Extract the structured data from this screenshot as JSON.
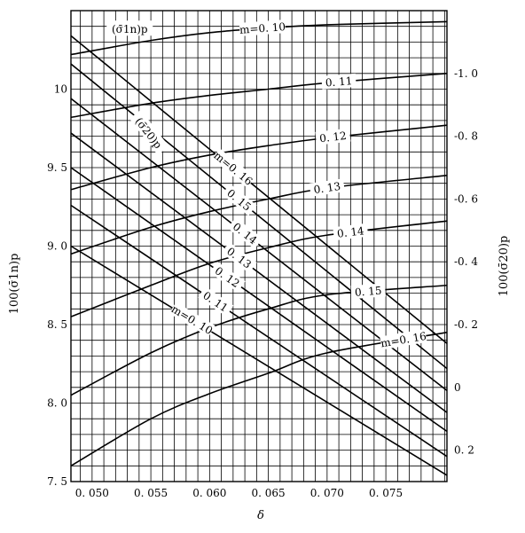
{
  "chart_data": {
    "type": "line",
    "xlabel": "δ",
    "ylabel_left": "100(σ̄1n)p",
    "ylabel_right": "100(σ̄20)p",
    "xlim": [
      0.0482,
      0.0802
    ],
    "ylim_left": [
      7.5,
      10.5
    ],
    "ylim_right": [
      0.3,
      -1.2
    ],
    "x_ticks": [
      0.05,
      0.055,
      0.06,
      0.065,
      0.07,
      0.075
    ],
    "x_tick_labels": [
      "0. 050",
      "0. 055",
      "0. 060",
      "0. 065",
      "0. 070",
      "0. 075"
    ],
    "y_left_ticks": [
      7.5,
      8.0,
      8.5,
      9.0,
      9.5,
      10.0
    ],
    "y_left_tick_labels": [
      "7. 5",
      "8. 0",
      "8. 5",
      "9. 0",
      "9. 5",
      "10"
    ],
    "y_right_ticks": [
      0.2,
      0.0,
      -0.2,
      -0.4,
      -0.6,
      -0.8,
      -1.0
    ],
    "y_right_tick_labels": [
      "0. 2",
      "0",
      "-0. 2",
      "-0. 4",
      "-0. 6",
      "-0. 8",
      "-1. 0"
    ],
    "grid": true,
    "group_labels": {
      "sigma1n": "(σ̄1n)p",
      "sigma20": "(σ̄20)p"
    },
    "series_sigma1n": [
      {
        "name": "m=0. 10",
        "axis": "left",
        "points": [
          [
            0.0482,
            10.22
          ],
          [
            0.055,
            10.31
          ],
          [
            0.06,
            10.36
          ],
          [
            0.065,
            10.39
          ],
          [
            0.07,
            10.41
          ],
          [
            0.0802,
            10.43
          ]
        ]
      },
      {
        "name": "0. 11",
        "axis": "left",
        "points": [
          [
            0.0482,
            9.82
          ],
          [
            0.055,
            9.91
          ],
          [
            0.06,
            9.96
          ],
          [
            0.065,
            10.0
          ],
          [
            0.07,
            10.04
          ],
          [
            0.0802,
            10.1
          ]
        ]
      },
      {
        "name": "0. 12",
        "axis": "left",
        "points": [
          [
            0.0482,
            9.36
          ],
          [
            0.055,
            9.5
          ],
          [
            0.06,
            9.58
          ],
          [
            0.065,
            9.64
          ],
          [
            0.07,
            9.69
          ],
          [
            0.0802,
            9.77
          ]
        ]
      },
      {
        "name": "0. 13",
        "axis": "left",
        "points": [
          [
            0.0482,
            8.95
          ],
          [
            0.055,
            9.12
          ],
          [
            0.06,
            9.22
          ],
          [
            0.065,
            9.3
          ],
          [
            0.07,
            9.37
          ],
          [
            0.0802,
            9.45
          ]
        ]
      },
      {
        "name": "0. 14",
        "axis": "left",
        "points": [
          [
            0.0482,
            8.55
          ],
          [
            0.055,
            8.75
          ],
          [
            0.06,
            8.89
          ],
          [
            0.065,
            8.99
          ],
          [
            0.07,
            9.07
          ],
          [
            0.0802,
            9.16
          ]
        ]
      },
      {
        "name": "0. 15",
        "axis": "left",
        "points": [
          [
            0.0482,
            8.05
          ],
          [
            0.055,
            8.32
          ],
          [
            0.06,
            8.48
          ],
          [
            0.065,
            8.6
          ],
          [
            0.07,
            8.69
          ],
          [
            0.0802,
            8.75
          ]
        ]
      },
      {
        "name": "m=0. 16",
        "axis": "left",
        "points": [
          [
            0.0482,
            7.6
          ],
          [
            0.055,
            7.9
          ],
          [
            0.06,
            8.06
          ],
          [
            0.065,
            8.19
          ],
          [
            0.07,
            8.32
          ],
          [
            0.0802,
            8.45
          ]
        ]
      }
    ],
    "series_sigma20": [
      {
        "name": "m=0. 10",
        "axis": "right",
        "points": [
          [
            0.0482,
            -0.45
          ],
          [
            0.0802,
            0.28
          ]
        ]
      },
      {
        "name": "0. 11",
        "axis": "right",
        "points": [
          [
            0.0482,
            -0.58
          ],
          [
            0.0802,
            0.22
          ]
        ]
      },
      {
        "name": "0. 12",
        "axis": "right",
        "points": [
          [
            0.0482,
            -0.7
          ],
          [
            0.0802,
            0.14
          ]
        ]
      },
      {
        "name": "0. 13",
        "axis": "right",
        "points": [
          [
            0.0482,
            -0.81
          ],
          [
            0.0802,
            0.08
          ]
        ]
      },
      {
        "name": "0. 14",
        "axis": "right",
        "points": [
          [
            0.0482,
            -0.92
          ],
          [
            0.0802,
            0.01
          ]
        ]
      },
      {
        "name": "0. 15",
        "axis": "right",
        "points": [
          [
            0.0482,
            -1.03
          ],
          [
            0.0802,
            -0.06
          ]
        ]
      },
      {
        "name": "m=0. 16",
        "axis": "right",
        "points": [
          [
            0.0482,
            -1.12
          ],
          [
            0.0802,
            -0.14
          ]
        ]
      }
    ]
  }
}
